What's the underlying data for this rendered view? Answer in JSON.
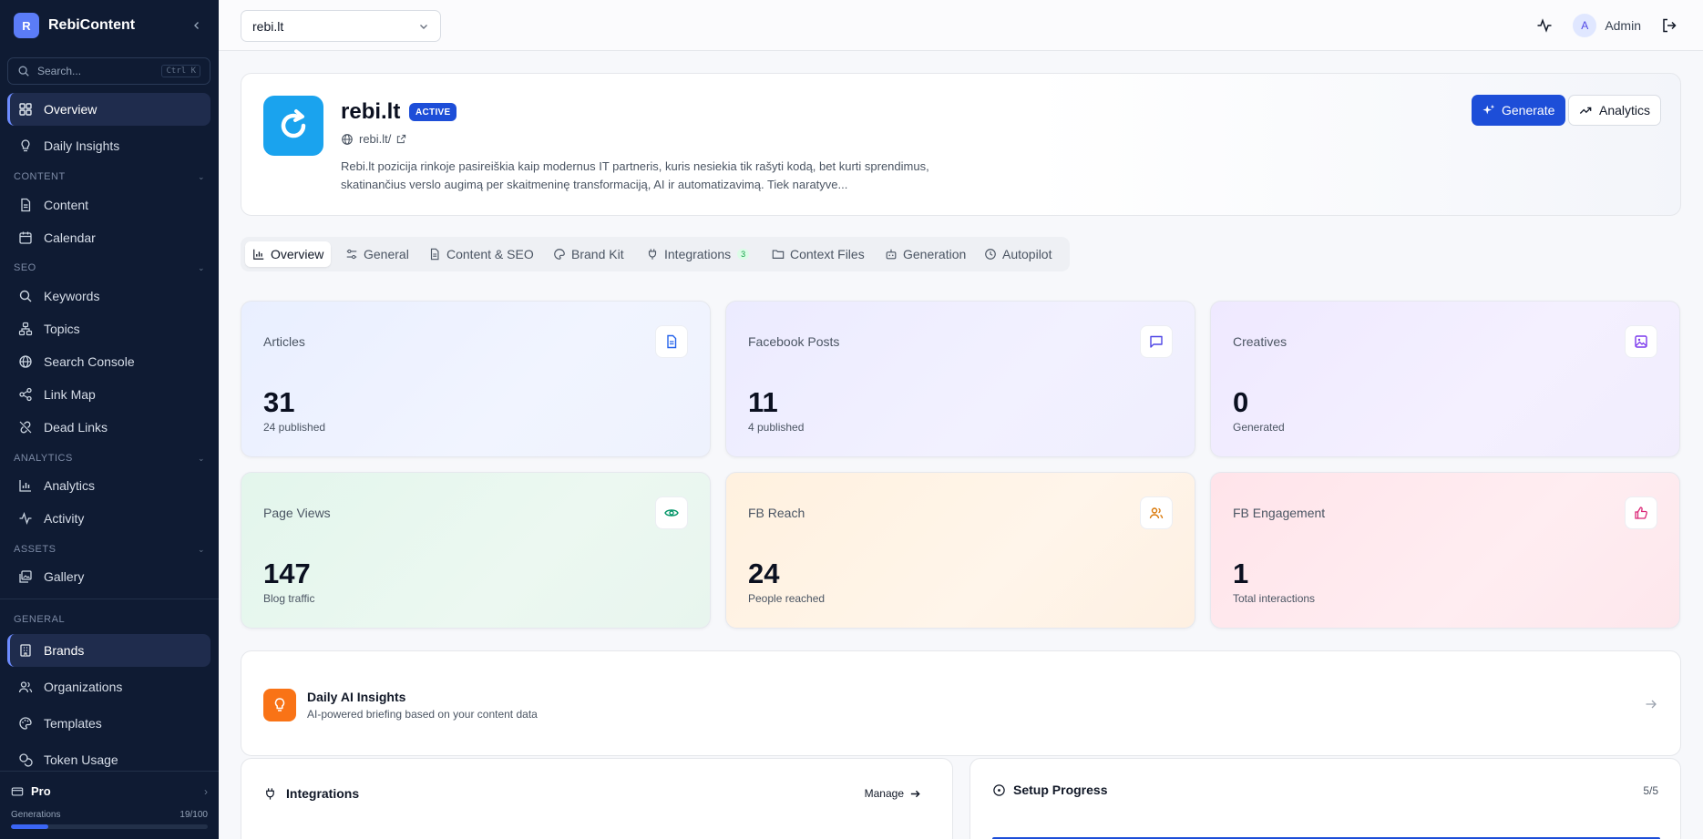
{
  "app": {
    "logo_letter": "R",
    "name": "RebiContent"
  },
  "search": {
    "placeholder": "Search...",
    "shortcut": "Ctrl K"
  },
  "nav": {
    "overview": "Overview",
    "daily_insights": "Daily Insights",
    "sections": {
      "content": "CONTENT",
      "seo": "SEO",
      "analytics": "ANALYTICS",
      "assets": "ASSETS",
      "general": "GENERAL"
    },
    "content": "Content",
    "calendar": "Calendar",
    "keywords": "Keywords",
    "topics": "Topics",
    "search_console": "Search Console",
    "link_map": "Link Map",
    "dead_links": "Dead Links",
    "analytics": "Analytics",
    "activity": "Activity",
    "gallery": "Gallery",
    "brands": "Brands",
    "organizations": "Organizations",
    "templates": "Templates",
    "token_usage": "Token Usage"
  },
  "plan": {
    "name": "Pro",
    "generations_label": "Generations",
    "generations_count": "19/100",
    "generations_fraction": 0.19
  },
  "topbar": {
    "selected_brand": "rebi.lt",
    "user_initial": "A",
    "user_name": "Admin"
  },
  "brand": {
    "name": "rebi.lt",
    "status": "ACTIVE",
    "url": "rebi.lt/",
    "description": "Rebi.lt pozicija rinkoje pasireiškia kaip modernus IT partneris, kuris nesiekia tik rašyti kodą, bet kurti sprendimus, skatinančius verslo augimą per skaitmeninę transformaciją, AI ir automatizavimą. Tiek naratyve...",
    "generate_label": "Generate",
    "analytics_label": "Analytics"
  },
  "tabs": {
    "overview": "Overview",
    "general": "General",
    "content_seo": "Content & SEO",
    "brand_kit": "Brand Kit",
    "integrations": "Integrations",
    "integrations_badge": "3",
    "context_files": "Context Files",
    "generation": "Generation",
    "autopilot": "Autopilot"
  },
  "stats": {
    "articles": {
      "title": "Articles",
      "value": "31",
      "sub": "24 published"
    },
    "facebook_posts": {
      "title": "Facebook Posts",
      "value": "11",
      "sub": "4 published"
    },
    "creatives": {
      "title": "Creatives",
      "value": "0",
      "sub": "Generated"
    },
    "page_views": {
      "title": "Page Views",
      "value": "147",
      "sub": "Blog traffic"
    },
    "fb_reach": {
      "title": "FB Reach",
      "value": "24",
      "sub": "People reached"
    },
    "fb_engagement": {
      "title": "FB Engagement",
      "value": "1",
      "sub": "Total interactions"
    }
  },
  "insights": {
    "title": "Daily AI Insights",
    "subtitle": "AI-powered briefing based on your content data"
  },
  "integrations_card": {
    "title": "Integrations",
    "manage_label": "Manage"
  },
  "setup": {
    "title": "Setup Progress",
    "count": "5/5",
    "fraction": 1.0
  },
  "colors": {
    "sidebar_bg": "#0f1b33",
    "accent": "#1d4ed8",
    "logo_blue": "#1aa3ee",
    "insight_orange": "#f97316"
  }
}
